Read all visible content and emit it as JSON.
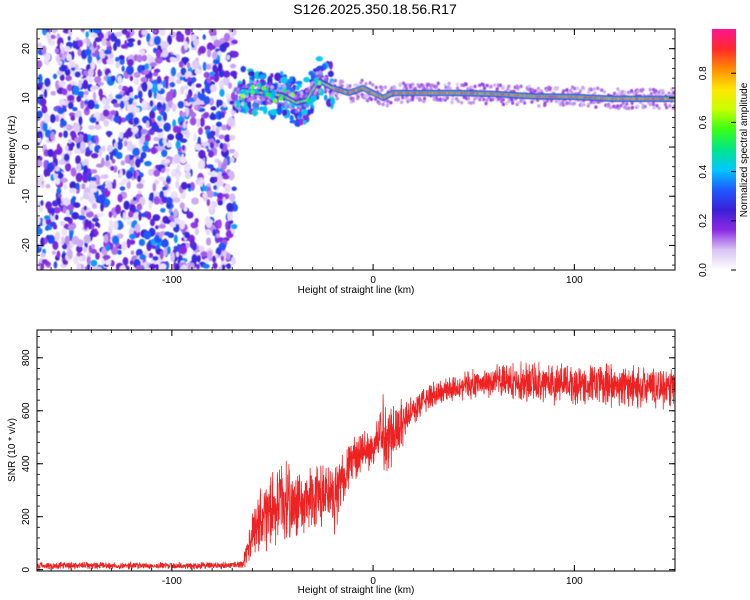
{
  "title": "S126.2025.350.18.56.R17",
  "chart_data": [
    {
      "type": "heatmap",
      "xlabel": "Height of straight line (km)",
      "ylabel": "Frequency (Hz)",
      "xlim": [
        -167,
        150
      ],
      "ylim": [
        -25,
        24
      ],
      "x_ticks": [
        -100,
        0,
        100
      ],
      "y_ticks": [
        -20,
        -10,
        0,
        10,
        20
      ],
      "grid": false,
      "colorbar": {
        "label": "Normalized spectral amplitude",
        "range": [
          0.0,
          0.98
        ],
        "ticks": [
          0.0,
          0.2,
          0.4,
          0.6,
          0.8
        ],
        "colormap": [
          "#ffffff",
          "#d9c4f5",
          "#8a2be2",
          "#3a1fd6",
          "#1e5bff",
          "#00c8ff",
          "#00e68a",
          "#39ff14",
          "#c8ff00",
          "#ffe600",
          "#ff8c00",
          "#ff2a2a",
          "#ff1493"
        ]
      },
      "features": {
        "noise_region_x": [
          -167,
          -68
        ],
        "noise_amplitude": [
          0.0,
          0.35
        ],
        "transition_region_x": [
          -68,
          -20
        ],
        "carrier_points": [
          {
            "x": -65,
            "y": 11.5
          },
          {
            "x": -55,
            "y": 11.0
          },
          {
            "x": -45,
            "y": 10.5
          },
          {
            "x": -38,
            "y": 9.0
          },
          {
            "x": -33,
            "y": 9.5
          },
          {
            "x": -27,
            "y": 13.5
          },
          {
            "x": -20,
            "y": 12.0
          },
          {
            "x": -12,
            "y": 11.0
          },
          {
            "x": -5,
            "y": 12.0
          },
          {
            "x": 0,
            "y": 11.0
          },
          {
            "x": 5,
            "y": 10.0
          },
          {
            "x": 10,
            "y": 11.0
          },
          {
            "x": 20,
            "y": 11.0
          },
          {
            "x": 40,
            "y": 11.0
          },
          {
            "x": 60,
            "y": 10.8
          },
          {
            "x": 80,
            "y": 10.3
          },
          {
            "x": 100,
            "y": 10.2
          },
          {
            "x": 120,
            "y": 9.8
          },
          {
            "x": 150,
            "y": 9.8
          }
        ]
      }
    },
    {
      "type": "line",
      "xlabel": "Height of straight line (km)",
      "ylabel": "SNR (10 * v/v)",
      "xlim": [
        -167,
        150
      ],
      "ylim": [
        -5,
        905
      ],
      "x_ticks": [
        -100,
        0,
        100
      ],
      "y_ticks": [
        0,
        200,
        400,
        600,
        800
      ],
      "grid": false,
      "series": [
        {
          "color": "#ee2222",
          "x": [
            -167,
            -140,
            -110,
            -80,
            -65,
            -60,
            -55,
            -50,
            -45,
            -40,
            -35,
            -30,
            -25,
            -20,
            -15,
            -10,
            -5,
            0,
            5,
            10,
            15,
            20,
            25,
            30,
            40,
            50,
            60,
            70,
            80,
            90,
            100,
            110,
            120,
            130,
            140,
            150
          ],
          "y": [
            15,
            15,
            15,
            15,
            20,
            120,
            200,
            230,
            260,
            250,
            240,
            260,
            280,
            260,
            350,
            420,
            440,
            460,
            520,
            520,
            560,
            600,
            640,
            660,
            690,
            700,
            710,
            710,
            710,
            705,
            700,
            700,
            695,
            690,
            690,
            690
          ],
          "noise": [
            15,
            15,
            15,
            15,
            15,
            110,
            150,
            160,
            170,
            150,
            140,
            160,
            170,
            150,
            120,
            100,
            90,
            80,
            180,
            160,
            100,
            60,
            60,
            60,
            60,
            60,
            70,
            80,
            90,
            90,
            90,
            90,
            90,
            90,
            90,
            90
          ]
        }
      ]
    }
  ]
}
